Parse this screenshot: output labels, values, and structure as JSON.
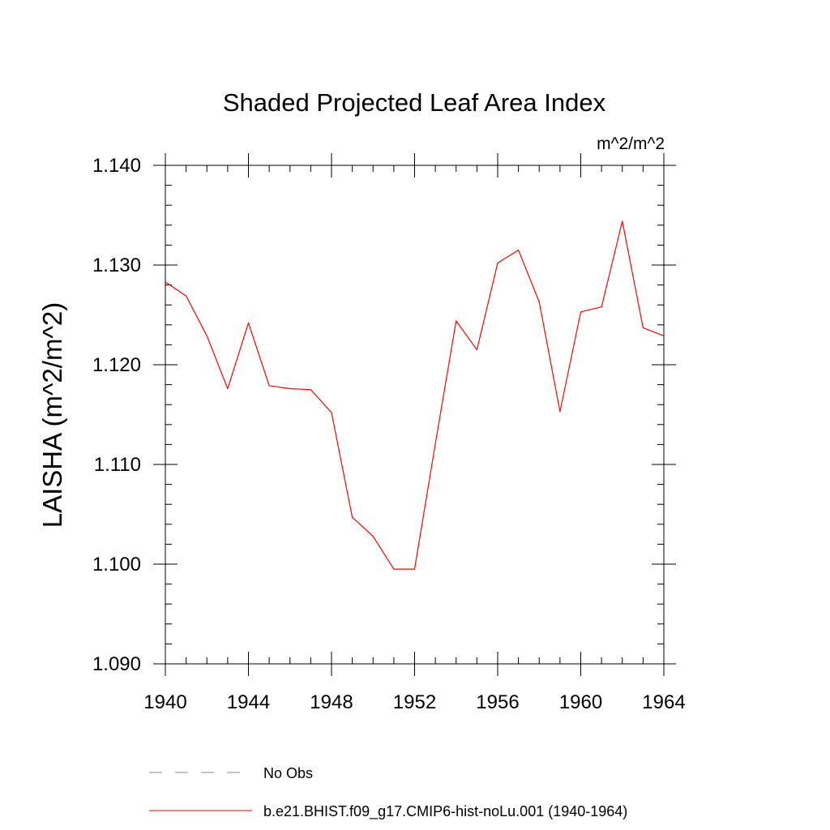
{
  "chart_data": {
    "type": "line",
    "title": "Shaded Projected Leaf Area Index",
    "units": "m^2/m^2",
    "xlabel": "",
    "ylabel": "LAISHA  (m^2/m^2)",
    "xlim": [
      1940,
      1964
    ],
    "ylim": [
      1.09,
      1.14
    ],
    "x_ticks": [
      1940,
      1944,
      1948,
      1952,
      1956,
      1960,
      1964
    ],
    "x_tick_labels": [
      "1940",
      "1944",
      "1948",
      "1952",
      "1956",
      "1960",
      "1964"
    ],
    "y_ticks": [
      1.09,
      1.1,
      1.11,
      1.12,
      1.13,
      1.14
    ],
    "y_tick_labels": [
      "1.090",
      "1.100",
      "1.110",
      "1.120",
      "1.130",
      "1.140"
    ],
    "x_minor_step": 1,
    "y_minor_step": 0.002,
    "grid": false,
    "legend_position": "bottom",
    "series": [
      {
        "name": "No Obs",
        "color": "#7f7fd0",
        "style": "dashed",
        "x": [],
        "y": []
      },
      {
        "name": "b.e21.BHIST.f09_g17.CMIP6-hist-noLu.001 (1940-1964)",
        "color": "#ff0000",
        "style": "solid",
        "x": [
          1940,
          1941,
          1942,
          1943,
          1944,
          1945,
          1946,
          1947,
          1948,
          1949,
          1950,
          1951,
          1952,
          1953,
          1954,
          1955,
          1956,
          1957,
          1958,
          1959,
          1960,
          1961,
          1962,
          1963,
          1964
        ],
        "y": [
          1.1283,
          1.1269,
          1.1229,
          1.1176,
          1.1242,
          1.1179,
          1.1176,
          1.1175,
          1.1152,
          1.1047,
          1.1028,
          1.0995,
          1.0995,
          1.1121,
          1.1244,
          1.1215,
          1.1302,
          1.1315,
          1.1263,
          1.1153,
          1.1253,
          1.1258,
          1.1344,
          1.1237,
          1.1229
        ]
      }
    ]
  }
}
